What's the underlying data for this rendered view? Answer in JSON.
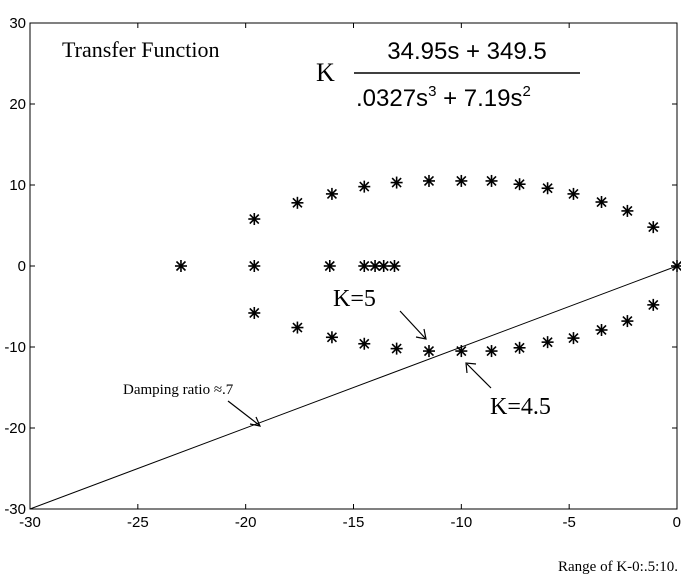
{
  "chart_data": {
    "type": "scatter",
    "xlim": [
      -30,
      0
    ],
    "ylim": [
      -30,
      30
    ],
    "x_ticks": [
      -30,
      -25,
      -20,
      -15,
      -10,
      -5,
      0
    ],
    "y_ticks": [
      30,
      20,
      10,
      0,
      -10,
      -20,
      -30
    ],
    "grid": false,
    "marker": "*",
    "title_text": "Transfer Function",
    "tf": {
      "gain": "K",
      "num": "34.95s + 349.5",
      "den_a": ".0327s",
      "den_a_exp": "3",
      "den_b": " + 7.19s",
      "den_b_exp": "2"
    },
    "footer": "Range of K-0:.5:10.",
    "annotations": [
      {
        "text": "K=5",
        "point": [
          -11.4,
          -8.8
        ]
      },
      {
        "text": "K=4.5",
        "point": [
          -10.0,
          -10.8
        ]
      },
      {
        "text": "Damping ratio ≈.7",
        "point": [
          -20.0,
          -19.8
        ]
      }
    ],
    "line": {
      "points": [
        [
          -30,
          -30
        ],
        [
          0,
          0
        ]
      ]
    },
    "points": [
      [
        -23.0,
        0
      ],
      [
        -19.6,
        0
      ],
      [
        -16.1,
        0
      ],
      [
        -14.5,
        0
      ],
      [
        -14.0,
        0
      ],
      [
        -13.6,
        0
      ],
      [
        -13.1,
        0
      ],
      [
        -19.6,
        5.8
      ],
      [
        -17.6,
        7.8
      ],
      [
        -16.0,
        8.9
      ],
      [
        -14.5,
        9.8
      ],
      [
        -13.0,
        10.3
      ],
      [
        -11.5,
        10.5
      ],
      [
        -10.0,
        10.5
      ],
      [
        -8.6,
        10.5
      ],
      [
        -7.3,
        10.1
      ],
      [
        -6.0,
        9.6
      ],
      [
        -4.8,
        8.9
      ],
      [
        -3.5,
        7.9
      ],
      [
        -2.3,
        6.8
      ],
      [
        -1.1,
        4.8
      ],
      [
        0,
        0
      ],
      [
        -19.6,
        -5.8
      ],
      [
        -17.6,
        -7.6
      ],
      [
        -16.0,
        -8.8
      ],
      [
        -14.5,
        -9.6
      ],
      [
        -13.0,
        -10.2
      ],
      [
        -11.5,
        -10.5
      ],
      [
        -10.0,
        -10.5
      ],
      [
        -8.6,
        -10.5
      ],
      [
        -7.3,
        -10.1
      ],
      [
        -6.0,
        -9.4
      ],
      [
        -4.8,
        -8.9
      ],
      [
        -3.5,
        -7.9
      ],
      [
        -2.3,
        -6.8
      ],
      [
        -1.1,
        -4.8
      ]
    ]
  }
}
